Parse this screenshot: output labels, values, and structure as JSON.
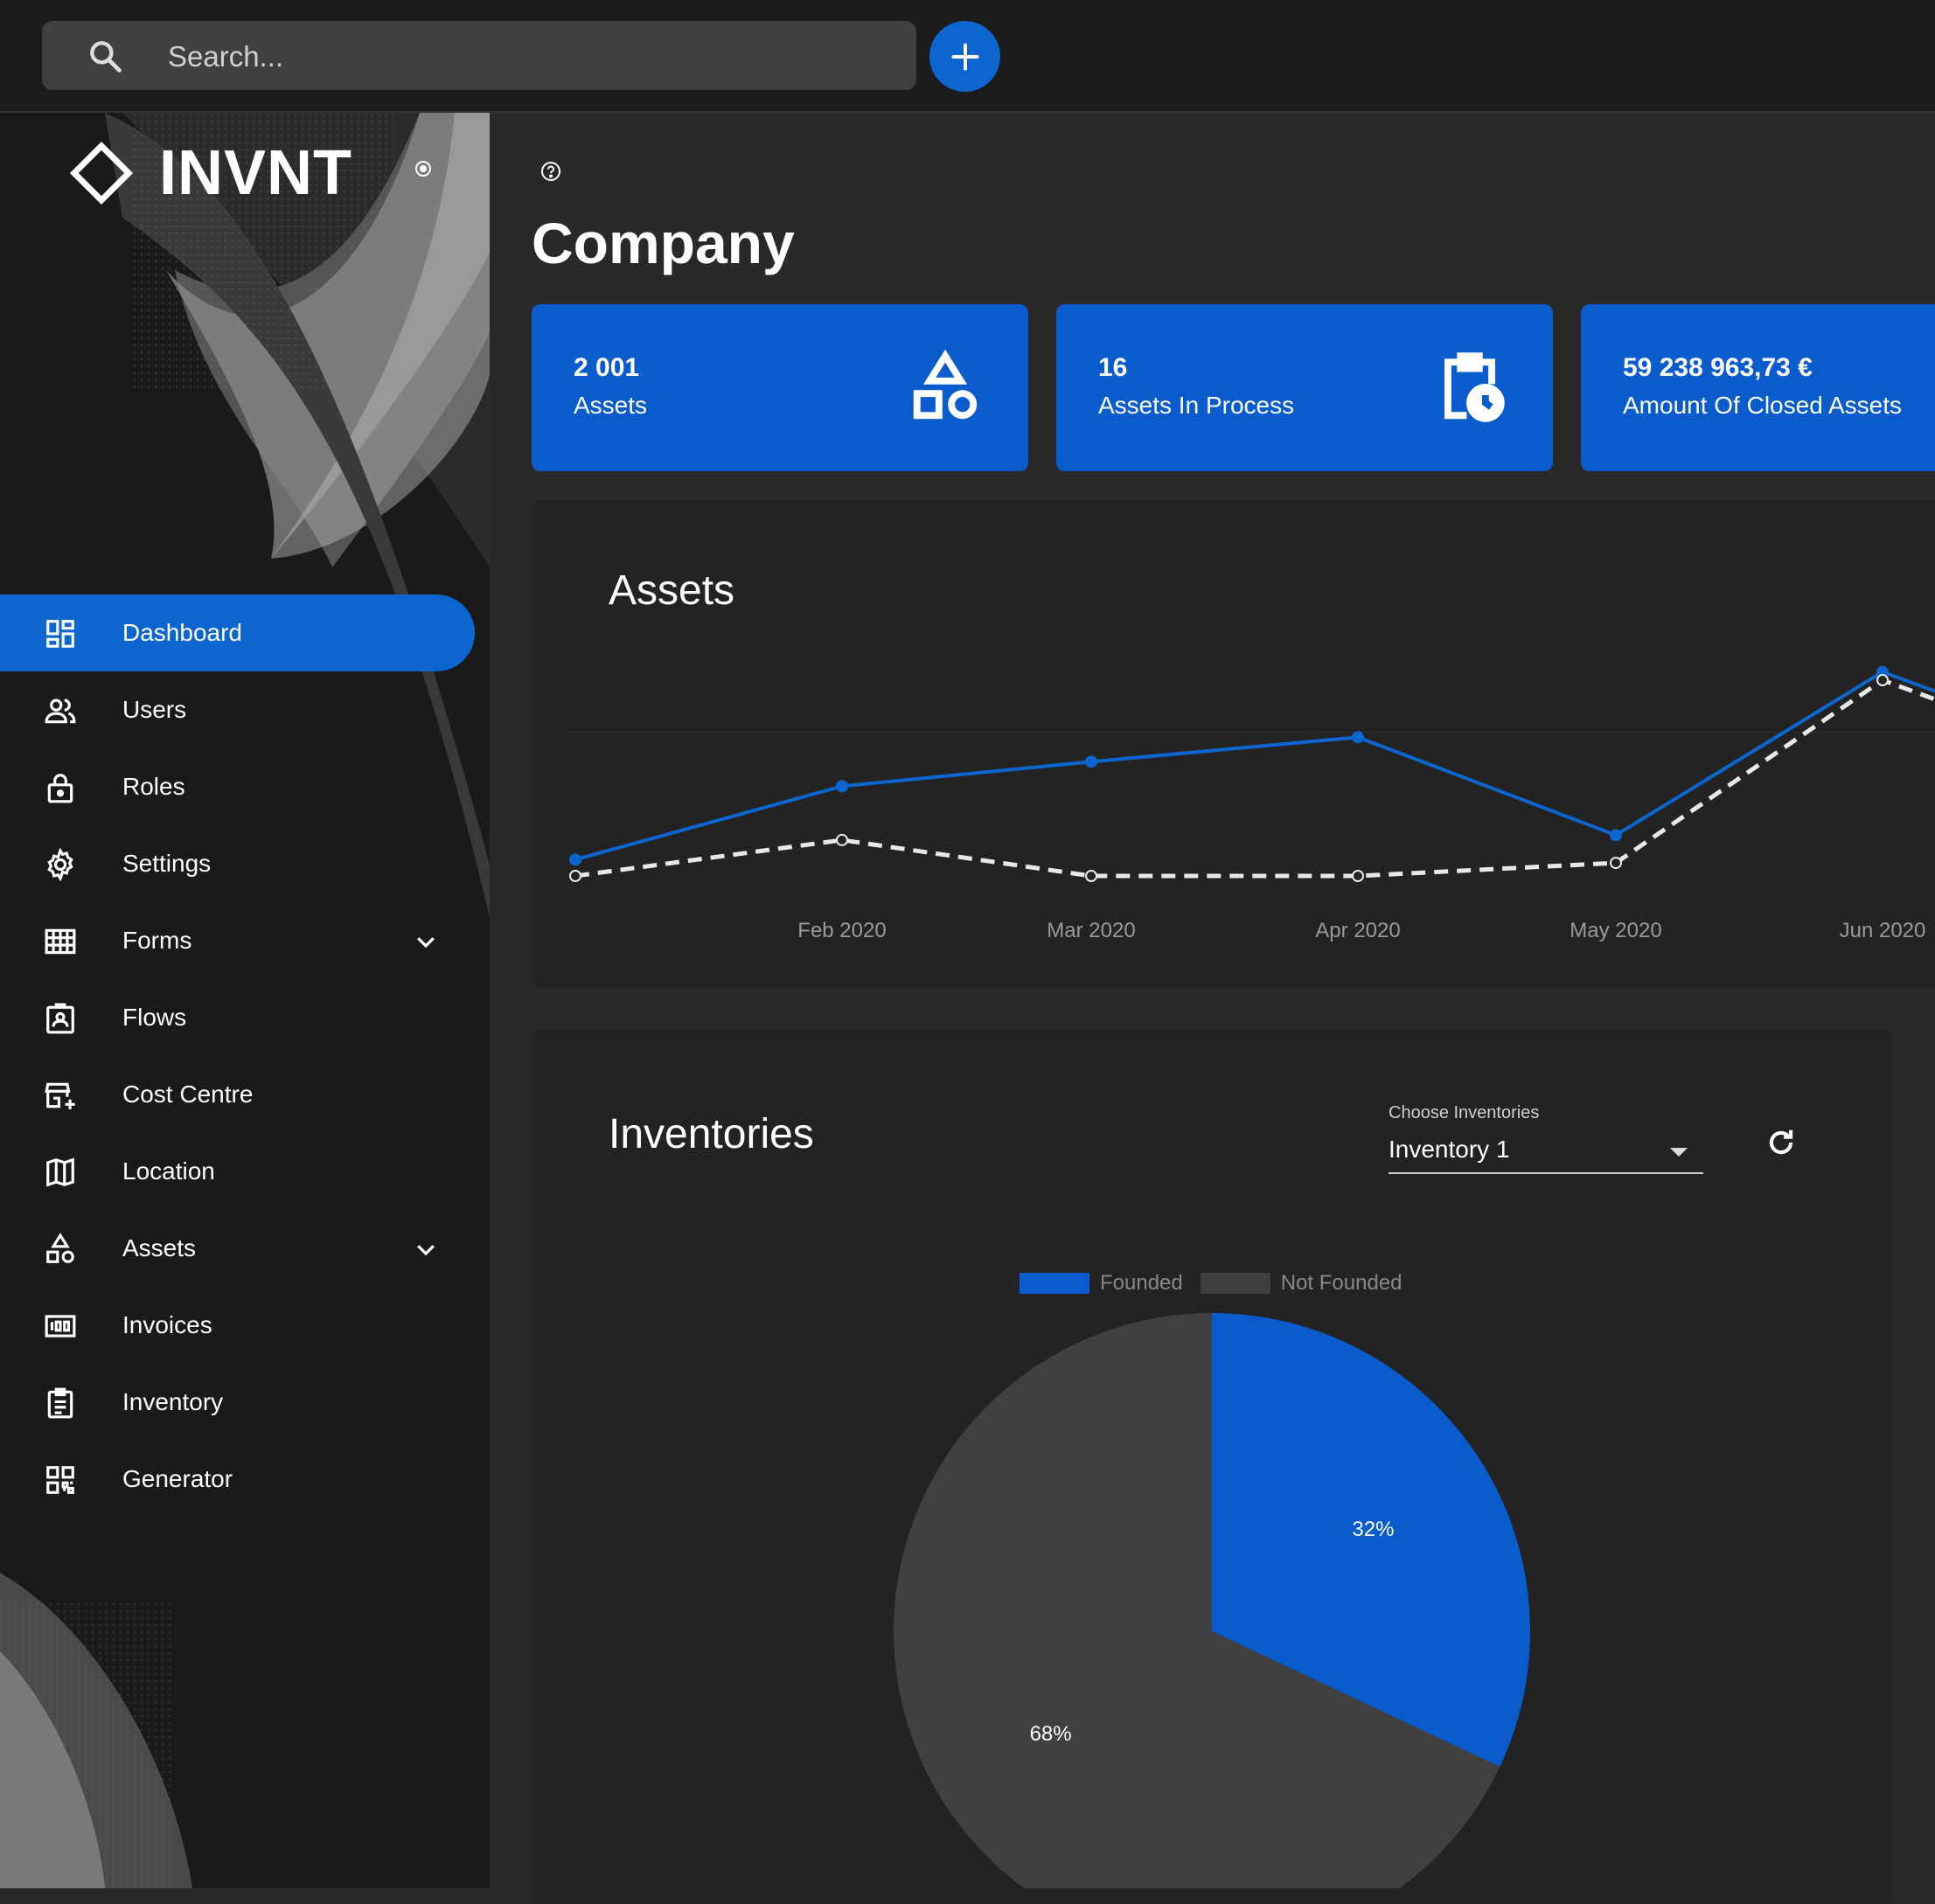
{
  "search": {
    "placeholder": "Search..."
  },
  "brand": {
    "name": "INVNT"
  },
  "sidebar": {
    "items": [
      {
        "label": "Dashboard",
        "icon": "dashboard-icon",
        "active": true
      },
      {
        "label": "Users",
        "icon": "users-icon"
      },
      {
        "label": "Roles",
        "icon": "lock-icon"
      },
      {
        "label": "Settings",
        "icon": "gear-icon"
      },
      {
        "label": "Forms",
        "icon": "grid-icon",
        "expandable": true
      },
      {
        "label": "Flows",
        "icon": "badge-icon"
      },
      {
        "label": "Cost Centre",
        "icon": "store-add-icon"
      },
      {
        "label": "Location",
        "icon": "map-icon"
      },
      {
        "label": "Assets",
        "icon": "shapes-icon",
        "expandable": true
      },
      {
        "label": "Invoices",
        "icon": "counter-icon"
      },
      {
        "label": "Inventory",
        "icon": "clipboard-list-icon"
      },
      {
        "label": "Generator",
        "icon": "qr-code-icon"
      }
    ]
  },
  "main": {
    "title": "Company",
    "stats": [
      {
        "value": "2 001",
        "label": "Assets",
        "icon": "shapes-icon"
      },
      {
        "value": "16",
        "label": "Assets In Process",
        "icon": "clipboard-clock-icon"
      },
      {
        "value": "59 238 963,73 €",
        "label": "Amount Of Closed Assets",
        "icon": ""
      }
    ],
    "assets_card": {
      "title": "Assets"
    },
    "inventories_card": {
      "title": "Inventories",
      "select_label": "Choose Inventories",
      "select_value": "Inventory 1"
    }
  },
  "colors": {
    "accent": "#0d66d0",
    "card_blue": "#0a5ccc",
    "grey_slice": "#404040"
  },
  "chart_data": [
    {
      "type": "line",
      "title": "Assets",
      "x": [
        "",
        "Feb 2020",
        "Mar 2020",
        "Apr 2020",
        "May 2020",
        "Jun 2020"
      ],
      "series": [
        {
          "values": [
            0.1,
            0.55,
            0.7,
            0.85,
            0.25,
            1.25
          ],
          "style": "solid",
          "color": "#0d66d0"
        },
        {
          "values": [
            0.0,
            0.22,
            0.0,
            0.0,
            0.08,
            1.2
          ],
          "style": "dashed",
          "color": "#e8e8e8"
        }
      ],
      "ylim": [
        0,
        1.5
      ],
      "grid": true
    },
    {
      "type": "pie",
      "categories": [
        "Founded",
        "Not Founded"
      ],
      "values": [
        32,
        68
      ],
      "labels": [
        "32%",
        "68%"
      ],
      "colors": [
        "#0a5ccc",
        "#404040"
      ],
      "legend": "top"
    }
  ]
}
